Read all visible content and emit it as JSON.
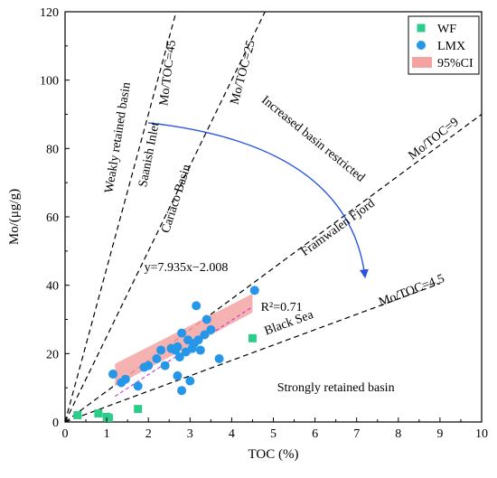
{
  "chart_data": {
    "type": "scatter",
    "xlabel": "TOC (%)",
    "ylabel": "Mo/(μg/g)",
    "xlim": [
      0,
      10
    ],
    "ylim": [
      0,
      120
    ],
    "xticks": [
      "0",
      "1",
      "2",
      "3",
      "4",
      "5",
      "6",
      "7",
      "8",
      "9",
      "10"
    ],
    "yticks": [
      "0",
      "20",
      "40",
      "60",
      "80",
      "100",
      "120"
    ],
    "legend_position": "top-right",
    "series": [
      {
        "name": "WF",
        "marker": "square",
        "color": "#2ecc8a",
        "points": [
          [
            0.3,
            2.0
          ],
          [
            0.8,
            2.5
          ],
          [
            1.0,
            1.5
          ],
          [
            1.05,
            1.2
          ],
          [
            1.75,
            3.8
          ],
          [
            4.5,
            24.5
          ]
        ]
      },
      {
        "name": "LMX",
        "marker": "circle",
        "color": "#2596e8",
        "points": [
          [
            1.15,
            14.0
          ],
          [
            1.35,
            11.5
          ],
          [
            1.45,
            12.5
          ],
          [
            1.75,
            10.5
          ],
          [
            1.9,
            16.0
          ],
          [
            2.0,
            16.5
          ],
          [
            2.2,
            18.5
          ],
          [
            2.3,
            21.0
          ],
          [
            2.4,
            16.5
          ],
          [
            2.55,
            21.5
          ],
          [
            2.65,
            21.0
          ],
          [
            2.7,
            22.0
          ],
          [
            2.75,
            19.0
          ],
          [
            2.7,
            13.5
          ],
          [
            2.8,
            26.0
          ],
          [
            2.8,
            9.2
          ],
          [
            2.9,
            20.5
          ],
          [
            2.95,
            24.0
          ],
          [
            3.0,
            12.0
          ],
          [
            3.05,
            21.5
          ],
          [
            3.1,
            23.0
          ],
          [
            3.15,
            34.0
          ],
          [
            3.2,
            24.0
          ],
          [
            3.25,
            21.0
          ],
          [
            3.35,
            25.5
          ],
          [
            3.4,
            30.0
          ],
          [
            3.5,
            27.0
          ],
          [
            3.7,
            18.5
          ],
          [
            4.55,
            38.5
          ]
        ]
      }
    ],
    "ci_band": {
      "name": "95%CI",
      "color": "#f4a3a3",
      "x_start": 1.2,
      "x_end": 4.5,
      "lower_start": 10.5,
      "lower_end": 32.0,
      "upper_start": 17.0,
      "upper_end": 37.5
    },
    "regression": {
      "slope": 7.935,
      "intercept": -2.008,
      "x_start": 1.2,
      "x_end": 4.5,
      "equation_label": "y=7.935x−2.008",
      "r2_label": "R²=0.71"
    },
    "reference_lines": [
      {
        "label": "Mo/TOC=45",
        "slope": 45
      },
      {
        "label": "Mo/TOC=25",
        "slope": 25
      },
      {
        "label": "Mo/TOC=9",
        "slope": 9
      },
      {
        "label": "Mo/TOC=4.5",
        "slope": 4.5
      }
    ],
    "annotations": [
      {
        "text": "Weakly retained basin",
        "x": 1.35,
        "y": 83,
        "rotation": -81
      },
      {
        "text": "Saanish Inlet",
        "x": 2.1,
        "y": 78,
        "rotation": -79
      },
      {
        "text": "Cariaco Basin",
        "x": 2.75,
        "y": 65,
        "rotation": -72
      },
      {
        "text": "Increased basin restricted",
        "x": 5.9,
        "y": 82,
        "rotation": 39
      },
      {
        "text": "Framwalen Fjord",
        "x": 6.6,
        "y": 56,
        "rotation": -36
      },
      {
        "text": "Black Sea",
        "x": 5.4,
        "y": 28,
        "rotation": -20
      },
      {
        "text": "Strongly retained basin",
        "x": 6.5,
        "y": 9,
        "rotation": 0
      }
    ],
    "arrow": {
      "color": "#2a55e0",
      "start": [
        2.0,
        87.5
      ],
      "control": [
        6.8,
        81.0
      ],
      "end": [
        7.2,
        42.5
      ]
    }
  }
}
